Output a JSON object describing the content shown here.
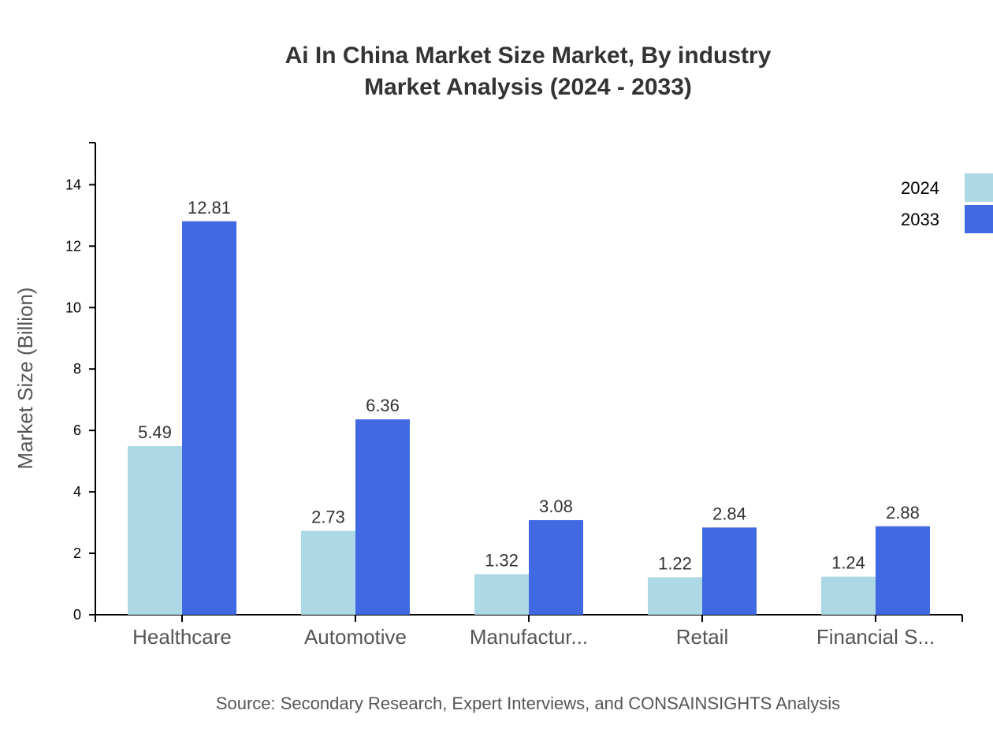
{
  "chart_data": {
    "type": "bar",
    "title_line1": "Ai In China Market Size Market, By industry",
    "title_line2": "Market Analysis (2024 - 2033)",
    "xlabel": "",
    "ylabel": "Market Size (Billion)",
    "source": "Source: Secondary Research, Expert Interviews, and CONSAINSIGHTS Analysis",
    "categories": [
      "Healthcare",
      "Automotive",
      "Manufactur...",
      "Retail",
      "Financial S..."
    ],
    "series": [
      {
        "name": "2024",
        "color": "#ADD8E6",
        "values": [
          5.49,
          2.73,
          1.32,
          1.22,
          1.24
        ]
      },
      {
        "name": "2033",
        "color": "#4169E1",
        "values": [
          12.81,
          6.36,
          3.08,
          2.84,
          2.88
        ]
      }
    ],
    "ylim": [
      0,
      15.37
    ],
    "yticks": [
      0,
      2,
      4,
      6,
      8,
      10,
      12,
      14
    ],
    "grid": false,
    "legend_position": "top-right"
  }
}
